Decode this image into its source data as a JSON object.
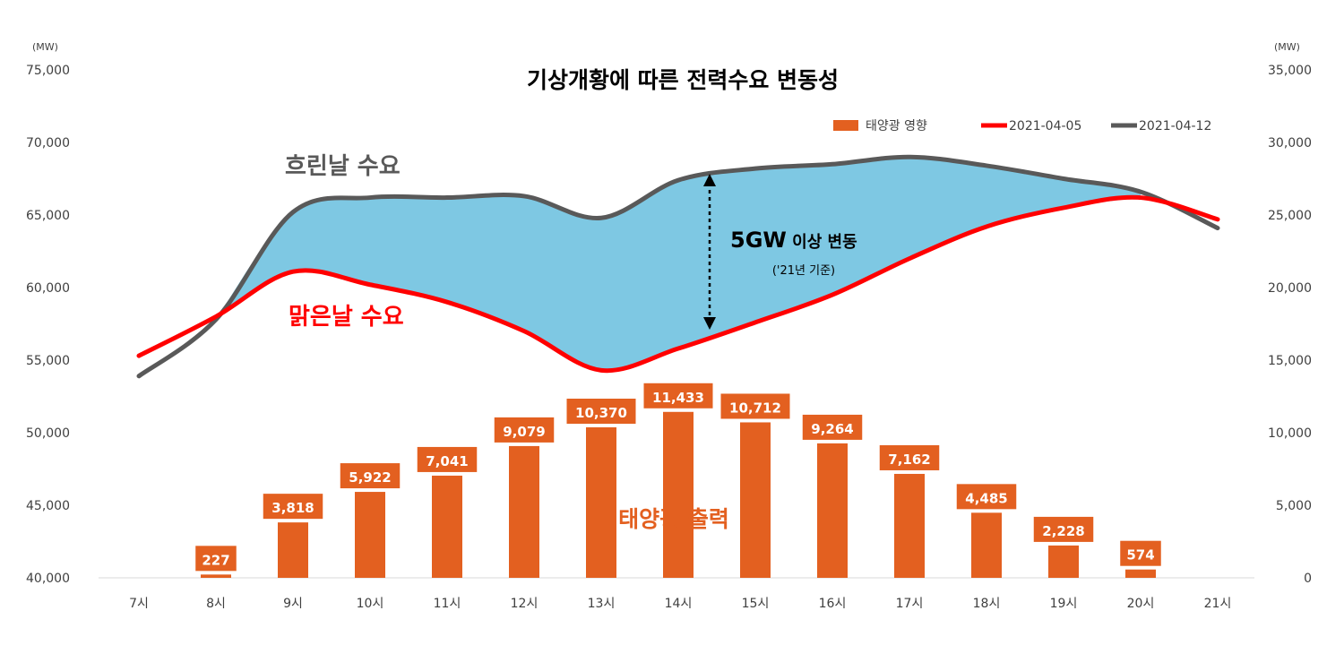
{
  "chart_data": {
    "type": "bar",
    "title": "기상개황에 따른 전력수요 변동성",
    "categories": [
      "7시",
      "8시",
      "9시",
      "10시",
      "11시",
      "12시",
      "13시",
      "14시",
      "15시",
      "16시",
      "17시",
      "18시",
      "19시",
      "20시",
      "21시"
    ],
    "y_left": {
      "unit": "(MW)",
      "min": 40000,
      "max": 75000,
      "ticks": [
        "40,000",
        "45,000",
        "50,000",
        "55,000",
        "60,000",
        "65,000",
        "70,000",
        "75,000"
      ]
    },
    "y_right": {
      "unit": "(MW)",
      "min": 0,
      "max": 35000,
      "ticks": [
        "0",
        "5,000",
        "10,000",
        "15,000",
        "20,000",
        "25,000",
        "30,000",
        "35,000"
      ]
    },
    "series": [
      {
        "name": "태양광 영향",
        "type": "bar",
        "axis": "right",
        "color": "#E36020",
        "values": [
          null,
          227,
          3818,
          5922,
          7041,
          9079,
          10370,
          11433,
          10712,
          9264,
          7162,
          4485,
          2228,
          574,
          null
        ],
        "labels": [
          "",
          "227",
          "3,818",
          "5,922",
          "7,041",
          "9,079",
          "10,370",
          "11,433",
          "10,712",
          "9,264",
          "7,162",
          "4,485",
          "2,228",
          "574",
          ""
        ]
      },
      {
        "name": "2021-04-05",
        "type": "line",
        "axis": "left",
        "color": "#FF0000",
        "values": [
          55300,
          58000,
          61100,
          60200,
          59000,
          57000,
          54300,
          55800,
          57600,
          59500,
          62000,
          64200,
          65500,
          66200,
          64700
        ]
      },
      {
        "name": "2021-04-12",
        "type": "line",
        "axis": "left",
        "color": "#595959",
        "values": [
          53900,
          57800,
          65200,
          66200,
          66200,
          66300,
          64800,
          67400,
          68200,
          68500,
          69000,
          68400,
          67500,
          66600,
          64100
        ]
      }
    ],
    "legend": {
      "placement": "top-right"
    },
    "fill_between": {
      "color": "#7EC8E3"
    },
    "annotations": {
      "cloudy": "흐린날 수요",
      "sunny": "맑은날 수요",
      "variation_main": "5GW",
      "variation_rest": " 이상 변동",
      "variation_note": "('21년 기준)",
      "solar_output": "태양광 출력"
    }
  }
}
